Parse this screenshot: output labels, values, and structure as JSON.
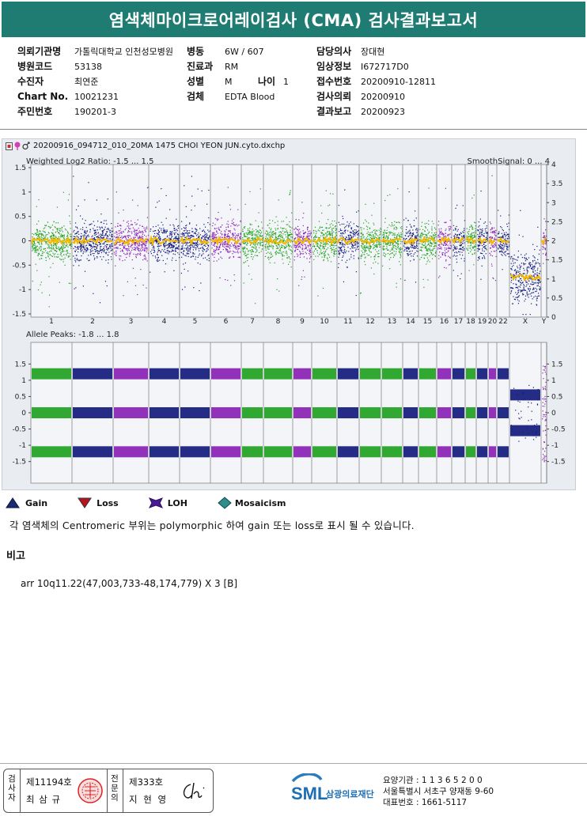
{
  "title": "염색체마이크로어레이검사 (CMA) 검사결과보고서",
  "info": {
    "left": [
      {
        "label": "의뢰기관명",
        "value": "가톨릭대학교 인천성모병원"
      },
      {
        "label": "병원코드",
        "value": "53138"
      },
      {
        "label": "수진자",
        "value": "최연준"
      },
      {
        "label": "Chart No.",
        "value": "10021231"
      },
      {
        "label": "주민번호",
        "value": "190201-3"
      }
    ],
    "mid": [
      {
        "label": "병동",
        "value": "6W / 607"
      },
      {
        "label": "진료과",
        "value": "RM"
      },
      {
        "label": "성별",
        "value": "M"
      },
      {
        "label": "검체",
        "value": "EDTA Blood"
      }
    ],
    "age_label": "나이",
    "age_value": "1",
    "right": [
      {
        "label": "담당의사",
        "value": "장대현"
      },
      {
        "label": "임상정보",
        "value": "I672717D0"
      },
      {
        "label": "접수번호",
        "value": "20200910-12811"
      },
      {
        "label": "검사의뢰",
        "value": "20200910"
      },
      {
        "label": "결과보고",
        "value": "20200923"
      }
    ]
  },
  "panel": {
    "filename": "20200916_094712_010_20MA 1475 CHOI YEON JUN.cyto.dxchp",
    "top_title": "Weighted Log2 Ratio: -1.5 ... 1.5",
    "top_right": "SmoothSignal: 0 ... 4",
    "bottom_title": "Allele Peaks: -1.8 ... 1.8",
    "top_left_ticks": [
      "1.5",
      "1",
      "0.5",
      "0",
      "-0.5",
      "-1",
      "-1.5"
    ],
    "top_right_ticks": [
      "4",
      "3.5",
      "3",
      "2.5",
      "2",
      "1.5",
      "1",
      "0.5",
      "0"
    ],
    "bottom_left_ticks": [
      "1.5",
      "1",
      "0.5",
      "0",
      "-0.5",
      "-1",
      "-1.5"
    ],
    "bottom_right_ticks": [
      "1.5",
      "1",
      "0.5",
      "0",
      "-0.5",
      "-1",
      "-1.5"
    ],
    "chromosomes": [
      "1",
      "2",
      "3",
      "4",
      "5",
      "6",
      "7",
      "8",
      "9",
      "10",
      "11",
      "12",
      "13",
      "14",
      "15",
      "16",
      "17",
      "18",
      "19",
      "20",
      "22",
      "X",
      "Y"
    ],
    "colors": {
      "green": "#21a121",
      "navy": "#131a7c",
      "purple": "#8a21b5",
      "orange": "#f5b800",
      "bg": "#e9edf2"
    }
  },
  "legend": [
    {
      "label": "Gain",
      "icon": "gain-triangle-icon"
    },
    {
      "label": "Loss",
      "icon": "loss-triangle-icon"
    },
    {
      "label": "LOH",
      "icon": "loh-star-icon"
    },
    {
      "label": "Mosaicism",
      "icon": "mosaicism-diamond-icon"
    }
  ],
  "note": "각 염색체의 Centromeric 부위는 polymorphic 하여 gain 또는 loss로 표시 될 수 있습니다.",
  "remark_heading": "비고",
  "remark_text": "arr 10q11.22(47,003,733-48,174,779) X 3 [B]",
  "footer": {
    "box1_label": "검사자",
    "box1_no": "제11194호",
    "box1_name": "최 삼 규",
    "box2_label": "전문의",
    "box2_no": "제333호",
    "box2_name": "지 현 영",
    "org_short": "SML",
    "org_name": "삼광의료재단",
    "addr1": "요양기관 : 1 1 3 6 5 2 0 0",
    "addr2": "서울특별시 서초구 양재동 9-60",
    "addr3": "대표번호 : 1661-5117"
  }
}
